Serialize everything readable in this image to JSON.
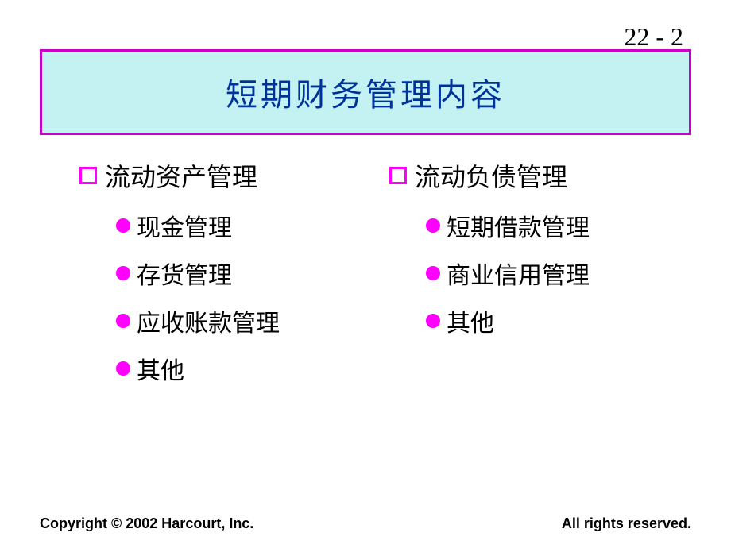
{
  "page_number": "22 - 2",
  "title": "短期财务管理内容",
  "colors": {
    "title_bg": "#c4f2f2",
    "title_border": "#c800c8",
    "title_text": "#003399",
    "bullet": "#ff00ff",
    "text": "#000000",
    "bg": "#ffffff"
  },
  "left_column": {
    "heading": "流动资产管理",
    "items": [
      "现金管理",
      "存货管理",
      "应收账款管理",
      "其他"
    ]
  },
  "right_column": {
    "heading": "流动负债管理",
    "items": [
      "短期借款管理",
      "商业信用管理",
      "其他"
    ]
  },
  "footer": {
    "left": "Copyright © 2002 Harcourt, Inc.",
    "right": "All rights reserved."
  }
}
